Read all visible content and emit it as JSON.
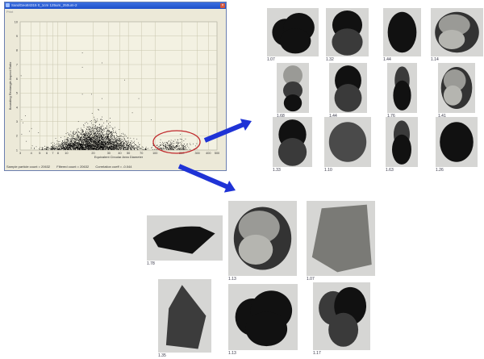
{
  "window": {
    "title": "SandGeo84315 0_1cm 125um_250um-2",
    "menu": [
      "Print"
    ],
    "close_icon": "close-icon",
    "status": {
      "sample_count": "Sample particle count = 20632",
      "filtered_count": "Filtered count = 20632",
      "correlation": "Correlation coeff = -0.044"
    }
  },
  "chart_data": {
    "type": "scatter",
    "xlabel": "Equivalent Circular Area Diameter",
    "ylabel": "Bounding Rectangle Aspect Ratio",
    "x_scale": "log",
    "xlim": [
      3,
      500
    ],
    "ylim": [
      1,
      10
    ],
    "x_ticks": [
      "3",
      "4",
      "5",
      "6",
      "7",
      "8",
      "10",
      "20",
      "30",
      "40",
      "50",
      "70",
      "100",
      "200",
      "300",
      "400",
      "500"
    ],
    "y_ticks": [
      "1",
      "2",
      "3",
      "4",
      "5",
      "6",
      "7",
      "8",
      "9",
      "10"
    ],
    "grid": true,
    "point_color": "#000000",
    "highlight": {
      "shape": "ellipse",
      "color": "#c0282b",
      "x_range": [
        100,
        300
      ],
      "y_range": [
        1,
        2.1
      ]
    },
    "outliers": [
      [
        15,
        7.8
      ],
      [
        15,
        6.8
      ],
      [
        25,
        7.1
      ],
      [
        45,
        5.9
      ],
      [
        3.05,
        6.2
      ],
      [
        15,
        4.9
      ],
      [
        19,
        4.9
      ],
      [
        65,
        4.6
      ],
      [
        3.1,
        3.1
      ],
      [
        3.2,
        2.9
      ],
      [
        3.4,
        3.4
      ],
      [
        3.1,
        2.1
      ],
      [
        3.5,
        1.6
      ],
      [
        4.8,
        2.2
      ],
      [
        7.5,
        1.8
      ],
      [
        4,
        2.5
      ],
      [
        3.8,
        2.3
      ],
      [
        55,
        3.6
      ],
      [
        90,
        3.1
      ],
      [
        25,
        4.6
      ]
    ],
    "clusters": [
      {
        "center_x": 20,
        "y_min": 1,
        "y_max": 4.7,
        "count": "dense"
      },
      {
        "center_x": 170,
        "y_min": 1,
        "y_max": 2.1,
        "count": "sparse"
      }
    ]
  },
  "colors": {
    "arrow": "#1f33d6",
    "title_bar": "#2a5fd8",
    "plot_bg": "#f3f1e2",
    "grid": "#c9c6ae"
  },
  "gallery_top": {
    "labels": [
      "1.07",
      "1.32",
      "1.44",
      "1.14",
      "1.68",
      "1.44",
      "1.76",
      "1.41",
      "1.33",
      "1.10",
      "1.63",
      "1.26"
    ]
  },
  "gallery_bottom": {
    "labels": [
      "1.78",
      "1.13",
      "1.07",
      "1.35",
      "1.13",
      "1.17"
    ]
  }
}
